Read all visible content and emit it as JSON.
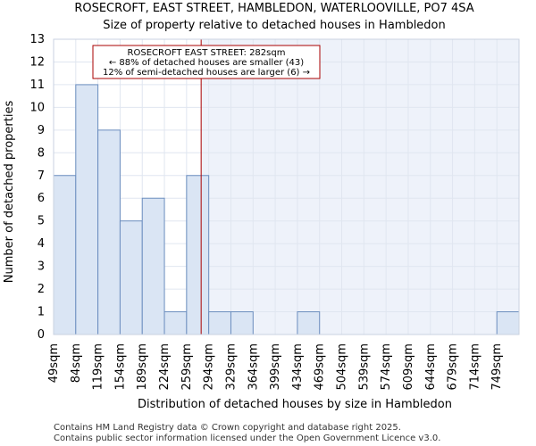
{
  "chart_data": {
    "type": "bar",
    "title": "ROSECROFT, EAST STREET, HAMBLEDON, WATERLOOVILLE, PO7 4SA",
    "subtitle": "Size of property relative to detached houses in Hambledon",
    "xlabel": "Distribution of detached houses by size in Hambledon",
    "ylabel": "Number of detached properties",
    "categories": [
      "49sqm",
      "84sqm",
      "119sqm",
      "154sqm",
      "189sqm",
      "224sqm",
      "259sqm",
      "294sqm",
      "329sqm",
      "364sqm",
      "399sqm",
      "434sqm",
      "469sqm",
      "504sqm",
      "539sqm",
      "574sqm",
      "609sqm",
      "644sqm",
      "679sqm",
      "714sqm",
      "749sqm"
    ],
    "values": [
      7,
      11,
      9,
      5,
      6,
      1,
      7,
      1,
      1,
      0,
      0,
      1,
      0,
      0,
      0,
      0,
      0,
      0,
      0,
      0,
      1
    ],
    "ylim": [
      0,
      13
    ],
    "yticks": [
      0,
      1,
      2,
      3,
      4,
      5,
      6,
      7,
      8,
      9,
      10,
      11,
      12,
      13
    ],
    "marker_value_sqm": 282,
    "marker_bin_start_sqm": 49,
    "marker_bin_width_sqm": 35,
    "grid": true,
    "annotation": {
      "line1": "ROSECROFT EAST STREET: 282sqm",
      "line2": "← 88% of detached houses are smaller (43)",
      "line3": "12% of semi-detached houses are larger (6) →"
    },
    "colors": {
      "bar_fill": "#dae5f4",
      "bar_stroke": "#6c8ebf",
      "marker": "#aa0000",
      "highlight": "#eef2fa",
      "grid": "#e0e6f0"
    }
  },
  "footer": {
    "line1": "Contains HM Land Registry data © Crown copyright and database right 2025.",
    "line2": "Contains public sector information licensed under the Open Government Licence v3.0."
  }
}
